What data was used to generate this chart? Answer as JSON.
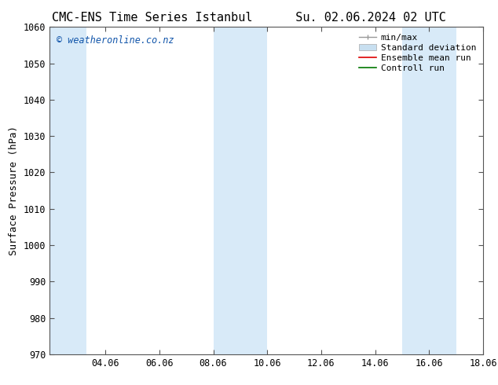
{
  "title_left": "CMC-ENS Time Series Istanbul",
  "title_right": "Su. 02.06.2024 02 UTC",
  "ylabel": "Surface Pressure (hPa)",
  "ylim": [
    970,
    1060
  ],
  "yticks": [
    970,
    980,
    990,
    1000,
    1010,
    1020,
    1030,
    1040,
    1050,
    1060
  ],
  "xlim": [
    2.0,
    18.06
  ],
  "xticks": [
    4.06,
    6.06,
    8.06,
    10.06,
    12.06,
    14.06,
    16.06,
    18.06
  ],
  "xticklabels": [
    "04.06",
    "06.06",
    "08.06",
    "10.06",
    "12.06",
    "14.06",
    "16.06",
    "18.06"
  ],
  "background_color": "#ffffff",
  "plot_bg_color": "#ffffff",
  "shaded_bands": [
    {
      "xmin": 2.0,
      "xmax": 3.36
    },
    {
      "xmin": 8.06,
      "xmax": 10.06
    },
    {
      "xmin": 15.06,
      "xmax": 17.06
    }
  ],
  "shade_color": "#d8eaf8",
  "watermark": "© weatheronline.co.nz",
  "watermark_color": "#1155aa",
  "legend_items": [
    {
      "label": "min/max",
      "type": "errorbar",
      "color": "#999999"
    },
    {
      "label": "Standard deviation",
      "type": "patch",
      "color": "#c8dff0"
    },
    {
      "label": "Ensemble mean run",
      "type": "line",
      "color": "#dd0000",
      "lw": 1.2
    },
    {
      "label": "Controll run",
      "type": "line",
      "color": "#007700",
      "lw": 1.2
    }
  ],
  "title_fontsize": 11,
  "axis_label_fontsize": 9,
  "tick_fontsize": 8.5,
  "legend_fontsize": 8,
  "watermark_fontsize": 8.5
}
